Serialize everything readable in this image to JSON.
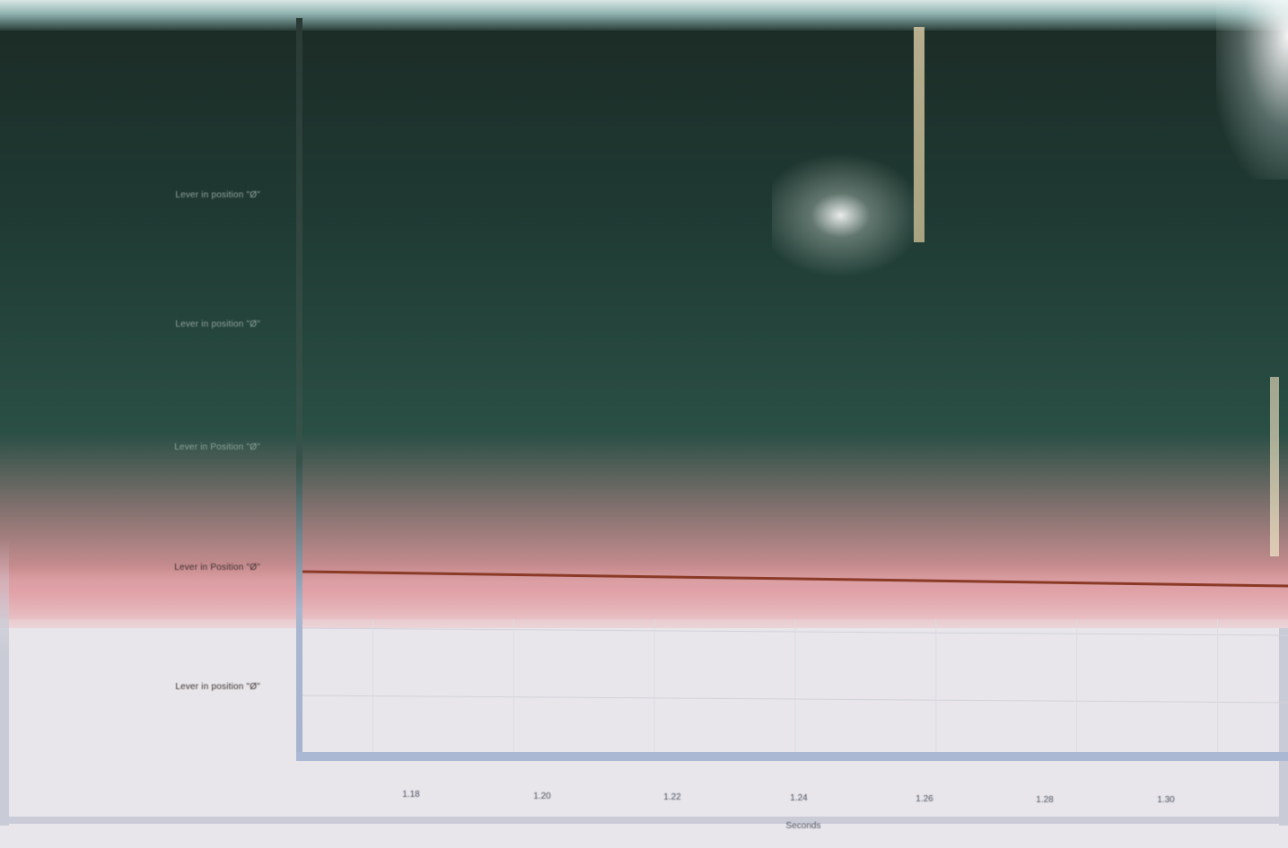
{
  "chart_data": {
    "type": "line",
    "xlabel": "Seconds",
    "x_ticks": [
      "1.18",
      "1.20",
      "1.22",
      "1.24",
      "1.26",
      "1.28",
      "1.30"
    ],
    "xlim": [
      1.17,
      1.31
    ],
    "y_categories": [
      "Lever in position \"Ø\"",
      "Lever in position \"Ø\"",
      "Lever in Position \"Ø\"",
      "Lever in Position \"Ø\"",
      "Lever in position \"Ø\""
    ],
    "series": [
      {
        "color": "#8a3a26",
        "x": [
          1.17,
          1.31
        ],
        "y_category_index": [
          3,
          3
        ]
      }
    ],
    "grid": true
  },
  "colors": {
    "line": "#8a3a26",
    "frame": "#aab8d4"
  }
}
